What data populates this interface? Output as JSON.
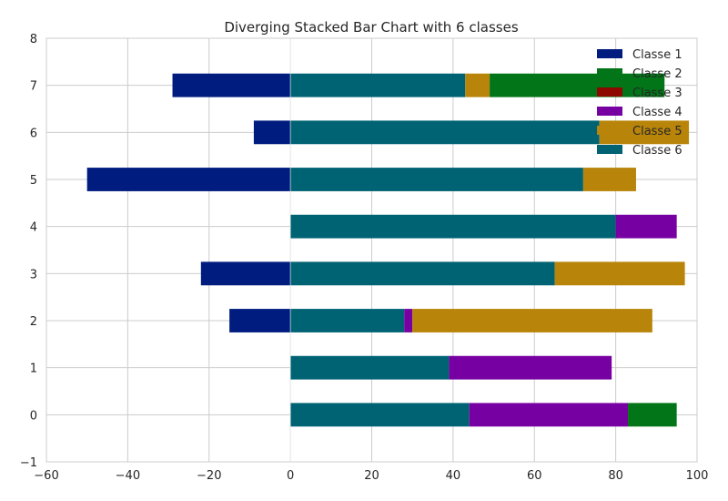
{
  "chart_data": {
    "type": "bar",
    "orientation": "horizontal",
    "stacked": true,
    "diverging": true,
    "title": "Diverging Stacked Bar Chart with 6 classes",
    "xlabel": "",
    "ylabel": "",
    "xlim": [
      -60,
      100
    ],
    "ylim": [
      -1,
      8
    ],
    "xticks": [
      -60,
      -40,
      -20,
      0,
      20,
      40,
      60,
      80,
      100
    ],
    "xtick_labels": [
      "−60",
      "−40",
      "−20",
      "0",
      "20",
      "40",
      "60",
      "80",
      "100"
    ],
    "yticks": [
      -1,
      0,
      1,
      2,
      3,
      4,
      5,
      6,
      7,
      8
    ],
    "ytick_labels": [
      "−1",
      "0",
      "1",
      "2",
      "3",
      "4",
      "5",
      "6",
      "7",
      "8"
    ],
    "grid": true,
    "legend_position": "top-right",
    "categories": [
      0,
      1,
      2,
      3,
      4,
      5,
      6,
      7
    ],
    "series": [
      {
        "name": "Classe 1",
        "color": "#001c7f",
        "values": [
          0,
          0,
          -15,
          -22,
          0,
          -50,
          -9,
          -29
        ]
      },
      {
        "name": "Classe 2",
        "color": "#017517",
        "values": [
          12,
          0,
          0,
          0,
          0,
          0,
          0,
          43
        ]
      },
      {
        "name": "Classe 3",
        "color": "#8c0800",
        "values": [
          0,
          0,
          0,
          0,
          0,
          0,
          0,
          0
        ]
      },
      {
        "name": "Classe 4",
        "color": "#7600a1",
        "values": [
          39,
          40,
          2,
          0,
          15,
          0,
          0,
          0
        ]
      },
      {
        "name": "Classe 5",
        "color": "#b8850a",
        "values": [
          0,
          0,
          59,
          32,
          0,
          13,
          22,
          6
        ]
      },
      {
        "name": "Classe 6",
        "color": "#006374",
        "values": [
          44,
          39,
          28,
          65,
          80,
          72,
          76,
          43
        ]
      }
    ],
    "stack_order_positive": [
      "Classe 6",
      "Classe 4",
      "Classe 5",
      "Classe 2",
      "Classe 3"
    ],
    "negative_series": [
      "Classe 1"
    ]
  }
}
